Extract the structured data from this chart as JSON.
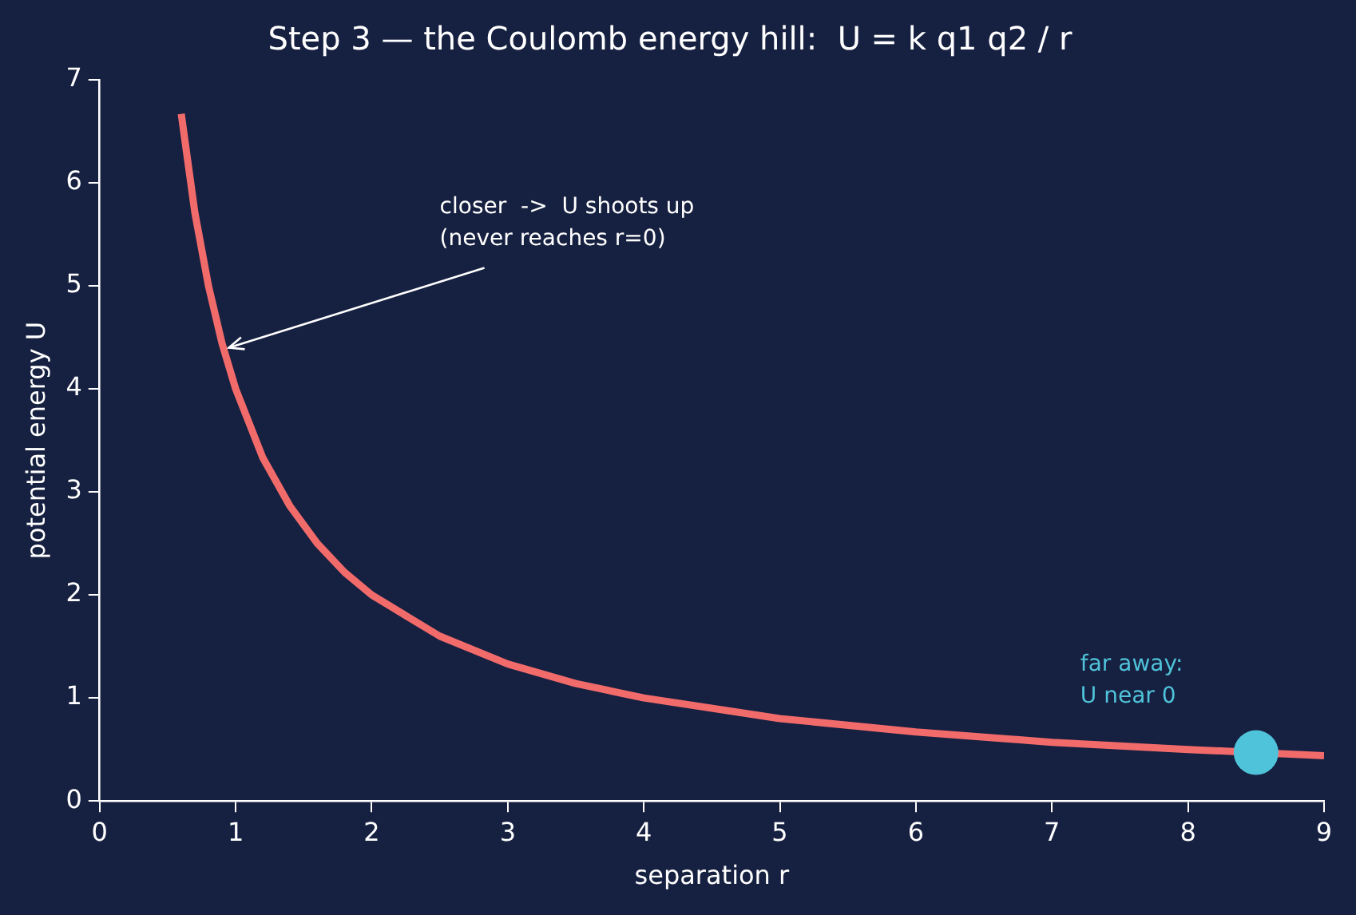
{
  "chart_data": {
    "type": "line",
    "title": "Step 3 — the Coulomb energy hill:  U = k q1 q2 / r",
    "xlabel": "separation r",
    "ylabel": "potential energy U",
    "xlim": [
      0,
      9
    ],
    "xticks": [
      0,
      1,
      2,
      3,
      4,
      5,
      6,
      7,
      8,
      9
    ],
    "ylim": [
      0,
      7
    ],
    "yticks": [
      0,
      1,
      2,
      3,
      4,
      5,
      6,
      7
    ],
    "grid": false,
    "legend": false,
    "line_style": "solid",
    "series": [
      {
        "type": "line",
        "marker": "none",
        "color": "#f26b6b",
        "x": [
          0.6,
          0.7,
          0.8,
          0.9,
          1,
          1.2,
          1.4,
          1.6,
          1.8,
          2,
          2.5,
          3,
          3.5,
          4,
          5,
          6,
          7,
          8,
          9
        ],
        "values": [
          6.67,
          5.71,
          5.0,
          4.44,
          4.0,
          3.33,
          2.86,
          2.5,
          2.22,
          2.0,
          1.6,
          1.33,
          1.14,
          1.0,
          0.8,
          0.67,
          0.57,
          0.5,
          0.44
        ]
      },
      {
        "type": "scatter",
        "marker": "circle",
        "color": "#4fc3d9",
        "x": [
          8.5
        ],
        "values": [
          0.47
        ]
      }
    ],
    "annotations": [
      {
        "text": "closer  ->  U shoots up\n(never reaches r=0)",
        "x": 0.95,
        "y": 4.4
      },
      "far away:\nU near 0"
    ]
  }
}
